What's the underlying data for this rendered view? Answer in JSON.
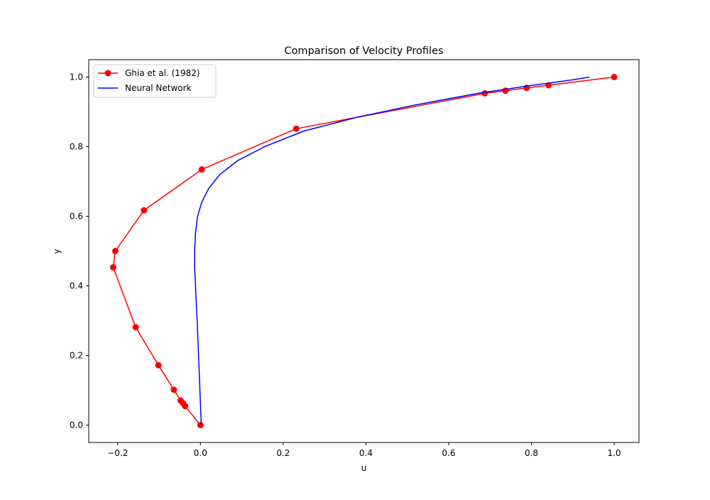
{
  "chart_data": {
    "type": "line",
    "title": "Comparison of Velocity Profiles",
    "xlabel": "u",
    "ylabel": "y",
    "xlim": [
      -0.27,
      1.06
    ],
    "ylim": [
      -0.05,
      1.05
    ],
    "xticks": [
      -0.2,
      0.0,
      0.2,
      0.4,
      0.6,
      0.8,
      1.0
    ],
    "xtick_labels": [
      "−0.2",
      "0.0",
      "0.2",
      "0.4",
      "0.6",
      "0.8",
      "1.0"
    ],
    "yticks": [
      0.0,
      0.2,
      0.4,
      0.6,
      0.8,
      1.0
    ],
    "ytick_labels": [
      "0.0",
      "0.2",
      "0.4",
      "0.6",
      "0.8",
      "1.0"
    ],
    "grid": false,
    "legend_position": "upper-left",
    "series": [
      {
        "name": "Ghia et al. (1982)",
        "color": "#ff0000",
        "marker": "circle",
        "points": [
          {
            "x": 1.0,
            "y": 1.0
          },
          {
            "x": 0.8412,
            "y": 0.9766
          },
          {
            "x": 0.7887,
            "y": 0.9688
          },
          {
            "x": 0.7372,
            "y": 0.9609
          },
          {
            "x": 0.6872,
            "y": 0.9531
          },
          {
            "x": 0.2315,
            "y": 0.8516
          },
          {
            "x": 0.0033,
            "y": 0.7344
          },
          {
            "x": -0.1364,
            "y": 0.6172
          },
          {
            "x": -0.2058,
            "y": 0.5
          },
          {
            "x": -0.2109,
            "y": 0.4531
          },
          {
            "x": -0.1566,
            "y": 0.2813
          },
          {
            "x": -0.1015,
            "y": 0.1719
          },
          {
            "x": -0.0643,
            "y": 0.1016
          },
          {
            "x": -0.0478,
            "y": 0.0703
          },
          {
            "x": -0.0419,
            "y": 0.0625
          },
          {
            "x": -0.0372,
            "y": 0.0547
          },
          {
            "x": 0.0,
            "y": 0.0
          }
        ]
      },
      {
        "name": "Neural Network",
        "color": "#0000ff",
        "marker": "none",
        "points": [
          {
            "x": 0.002,
            "y": 0.0
          },
          {
            "x": -0.003,
            "y": 0.15
          },
          {
            "x": -0.008,
            "y": 0.3
          },
          {
            "x": -0.014,
            "y": 0.45
          },
          {
            "x": -0.014,
            "y": 0.5
          },
          {
            "x": -0.012,
            "y": 0.55
          },
          {
            "x": -0.007,
            "y": 0.6
          },
          {
            "x": 0.003,
            "y": 0.64
          },
          {
            "x": 0.02,
            "y": 0.68
          },
          {
            "x": 0.047,
            "y": 0.72
          },
          {
            "x": 0.09,
            "y": 0.76
          },
          {
            "x": 0.155,
            "y": 0.8
          },
          {
            "x": 0.25,
            "y": 0.845
          },
          {
            "x": 0.38,
            "y": 0.885
          },
          {
            "x": 0.52,
            "y": 0.92
          },
          {
            "x": 0.67,
            "y": 0.953
          },
          {
            "x": 0.8,
            "y": 0.976
          },
          {
            "x": 0.9,
            "y": 0.992
          },
          {
            "x": 0.94,
            "y": 1.0
          }
        ]
      }
    ]
  }
}
